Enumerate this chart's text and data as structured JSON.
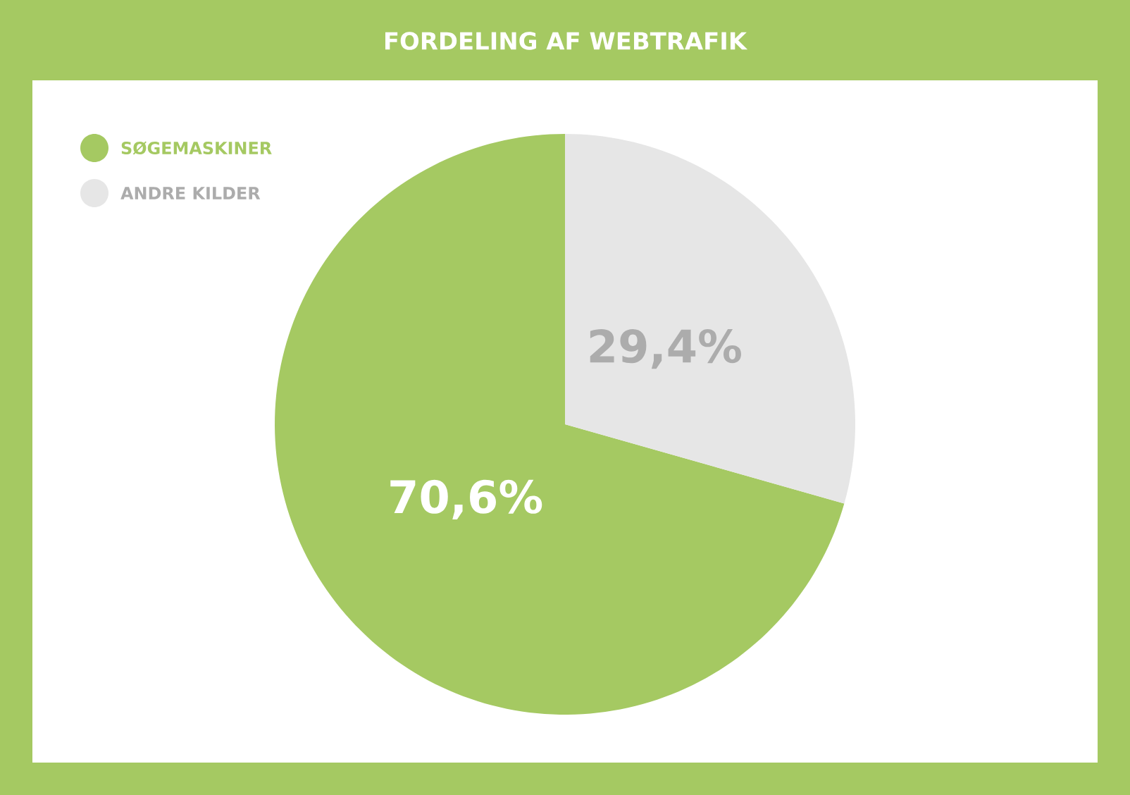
{
  "chart_data": {
    "type": "pie",
    "title": "FORDELING AF WEBTRAFIK",
    "categories": [
      "SØGEMASKINER",
      "ANDRE KILDER"
    ],
    "values": [
      70.6,
      29.4
    ],
    "colors": [
      "#a5c962",
      "#e6e6e6"
    ],
    "value_labels": [
      "70,6%",
      "29,4%"
    ],
    "legend": "top left"
  }
}
